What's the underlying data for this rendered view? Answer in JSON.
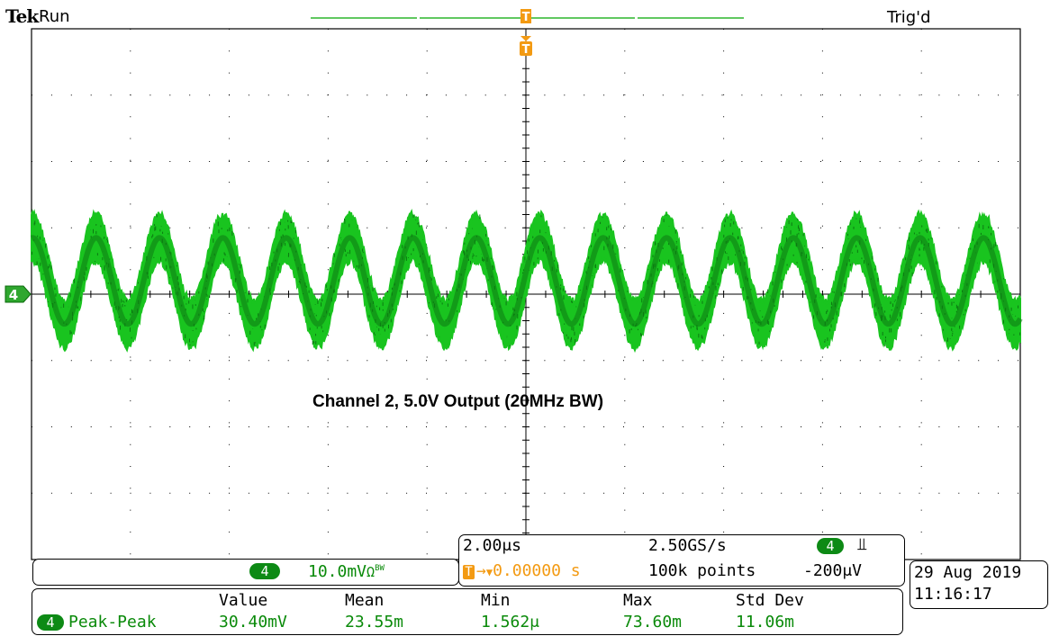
{
  "header": {
    "brand": "Tek",
    "acq_state": "Run",
    "trigger_status": "Trig'd"
  },
  "annotation": "Channel 2, 5.0V Output (20MHz BW)",
  "trigger": {
    "marker_label": "T",
    "position": "0.00000 s",
    "level": "-200μV",
    "source": "4",
    "slope_icon": "rising-edge"
  },
  "channel": {
    "id": "4",
    "scale": "10.0mV",
    "termination": "Ω",
    "bw_limit": "BW",
    "color": "#19c41f"
  },
  "horizontal": {
    "time_per_div": "2.00μs",
    "sample_rate": "2.50GS/s",
    "record_length": "100k points"
  },
  "datetime": {
    "date": "29 Aug 2019",
    "time": "11:16:17"
  },
  "measurements": {
    "headers": [
      "Value",
      "Mean",
      "Min",
      "Max",
      "Std Dev"
    ],
    "rows": [
      {
        "source": "4",
        "name": "Peak-Peak",
        "value": "30.40mV",
        "mean": "23.55m",
        "min": "1.562μ",
        "max": "73.60m",
        "std_dev": "11.06m"
      }
    ]
  },
  "waveform": {
    "cycles_on_screen": 15.6,
    "amplitude_div": 0.65,
    "noise_band_div": 0.35
  },
  "colors": {
    "trace": "#19c41f",
    "trace_dark": "#0c7a12",
    "trigger": "#f39a12",
    "record_bar": "#2bb52b"
  }
}
